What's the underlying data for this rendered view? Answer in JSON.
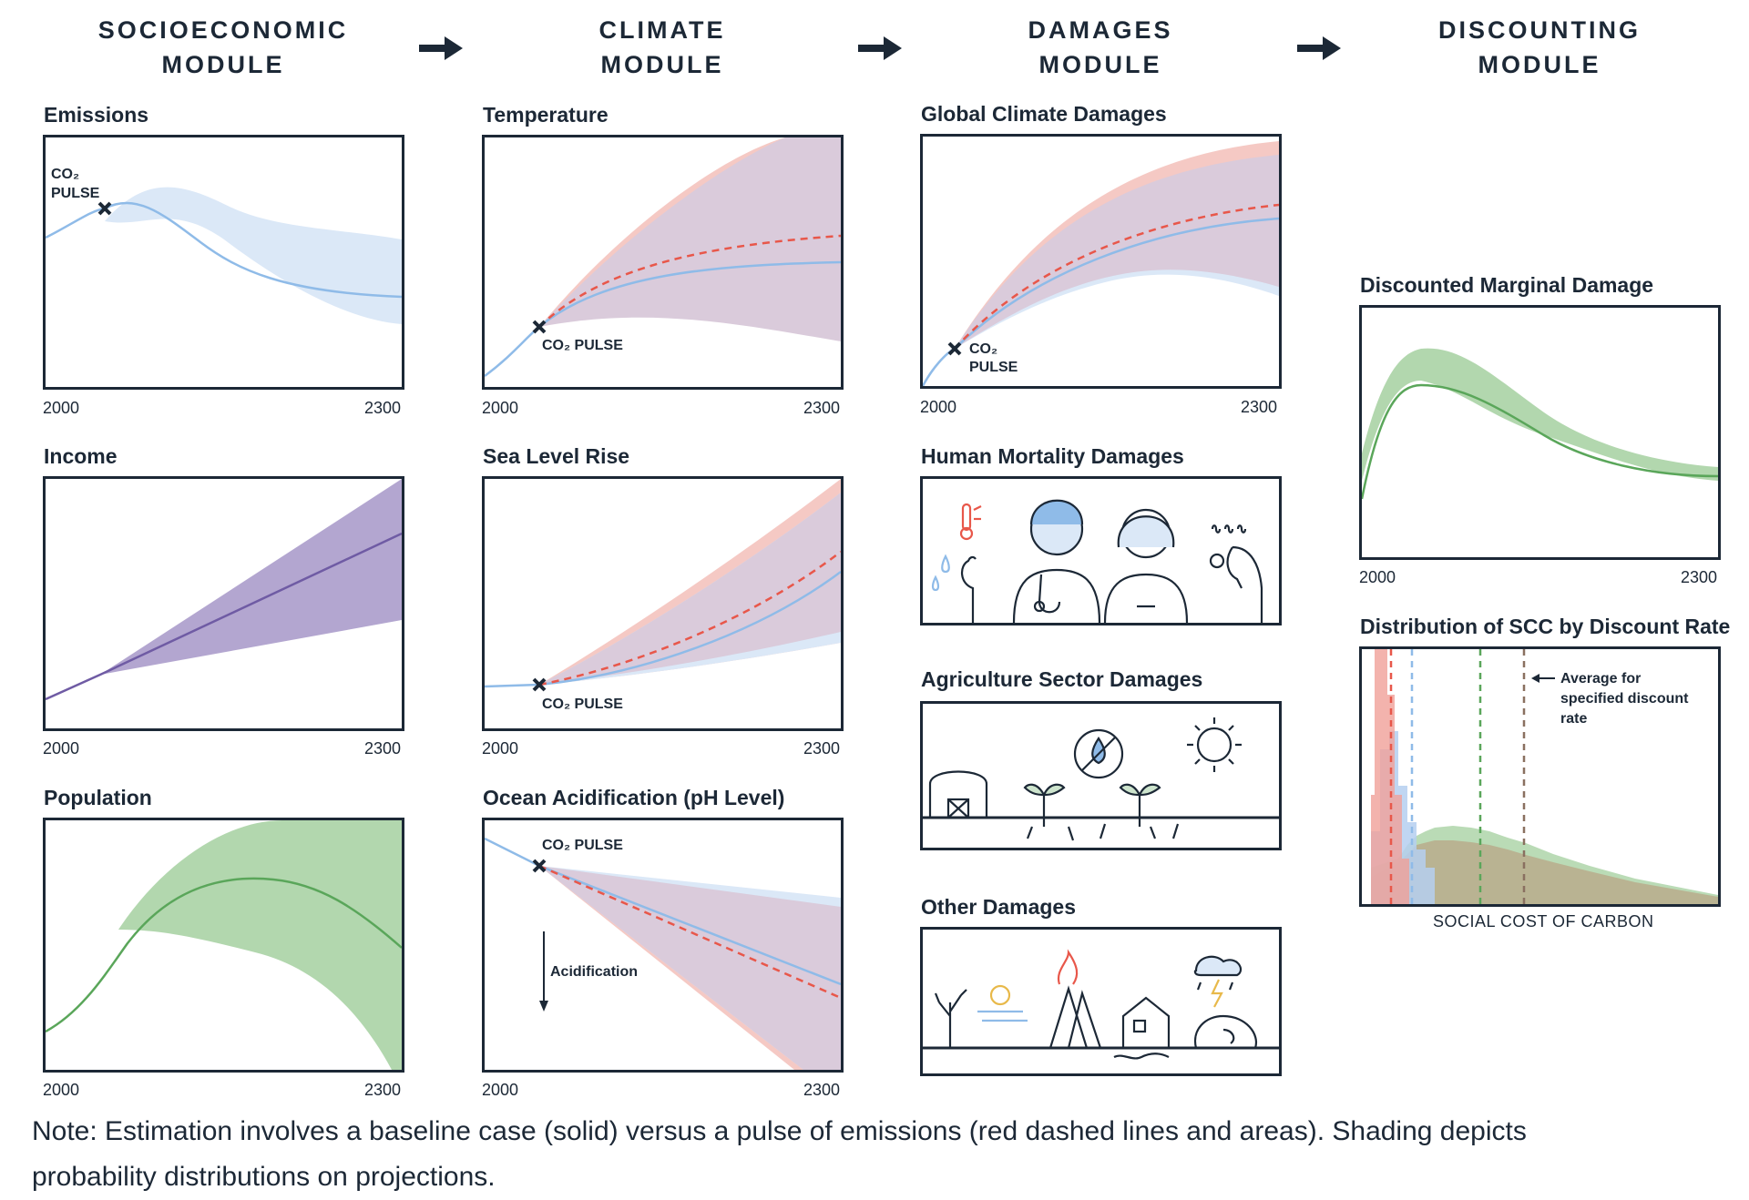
{
  "modules": [
    {
      "title_line1": "SOCIOECONOMIC",
      "title_line2": "MODULE"
    },
    {
      "title_line1": "CLIMATE",
      "title_line2": "MODULE"
    },
    {
      "title_line1": "DAMAGES",
      "title_line2": "MODULE"
    },
    {
      "title_line1": "DISCOUNTING",
      "title_line2": "MODULE"
    }
  ],
  "socioeconomic": {
    "emissions": {
      "title": "Emissions",
      "pulse_label_1": "CO₂",
      "pulse_label_2": "PULSE"
    },
    "income": {
      "title": "Income"
    },
    "population": {
      "title": "Population"
    }
  },
  "climate": {
    "temperature": {
      "title": "Temperature",
      "pulse_label": "CO₂ PULSE"
    },
    "sea_level": {
      "title": "Sea Level Rise",
      "pulse_label": "CO₂ PULSE"
    },
    "ocean": {
      "title": "Ocean Acidification (pH Level)",
      "pulse_label": "CO₂ PULSE",
      "arrow_label": "Acidification"
    }
  },
  "damages": {
    "global": {
      "title": "Global Climate Damages",
      "pulse_label_1": "CO₂",
      "pulse_label_2": "PULSE"
    },
    "mortality": {
      "title": "Human Mortality Damages"
    },
    "agriculture": {
      "title": "Agriculture Sector Damages"
    },
    "other": {
      "title": "Other Damages"
    }
  },
  "discounting": {
    "marginal": {
      "title": "Discounted Marginal Damage"
    },
    "distribution": {
      "title": "Distribution of SCC by Discount Rate",
      "annotation_1": "Average for",
      "annotation_2": "specified discount",
      "annotation_3": "rate",
      "xlabel": "SOCIAL COST OF CARBON"
    }
  },
  "axis": {
    "start": "2000",
    "end": "2300"
  },
  "note": {
    "line1": "Note: Estimation involves a baseline case (solid) versus a pulse of emissions (red dashed lines and areas). Shading depicts",
    "line2": "probability distributions on projections."
  },
  "colors": {
    "ink": "#1c2836",
    "baseline_blue": "#8fbbe8",
    "band_blue": "#dbe8f7",
    "pulse_red": "#e8574a",
    "band_red": "#f5c9c4",
    "band_overlap": "#dacbdb",
    "income_purple": "#6f5ba4",
    "band_purple": "#b3a6d0",
    "green": "#5aa65a",
    "band_green": "#b2d7ae"
  }
}
